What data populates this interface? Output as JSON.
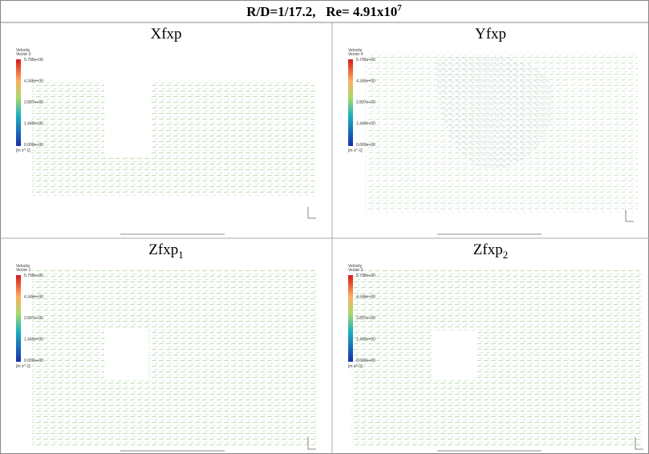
{
  "header": {
    "title": "R/D=1/17.2,   Re= 4.91x10",
    "title_sup": "7"
  },
  "panels": [
    {
      "title": "Xfxp",
      "legend": {
        "title": "Velocity",
        "name": "Vector 3",
        "ticks": [
          "5.795e+00",
          "4.346e+00",
          "2.897e+00",
          "1.449e+00",
          "0.000e+00"
        ],
        "unit": "[m s^-1]"
      }
    },
    {
      "title": "Yfxp",
      "legend": {
        "title": "Velocity",
        "name": "Vector 4",
        "ticks": [
          "5.795e+00",
          "4.346e+00",
          "2.897e+00",
          "1.449e+00",
          "0.000e+00"
        ],
        "unit": "[m s^-1]"
      }
    },
    {
      "title": "Zfxp",
      "subscript": "1",
      "legend": {
        "title": "Velocity",
        "name": "Vector 1",
        "ticks": [
          "5.795e+00",
          "4.346e+00",
          "2.897e+00",
          "1.449e+00",
          "0.000e+00"
        ],
        "unit": "[m s^-1]"
      }
    },
    {
      "title": "Zfxp",
      "subscript": "2",
      "legend": {
        "title": "Velocity",
        "name": "Vector 2",
        "ticks": [
          "5.795e+00",
          "4.346e+00",
          "2.897e+00",
          "1.449e+00",
          "0.000e+00"
        ],
        "unit": "[m s^-1]"
      }
    }
  ]
}
